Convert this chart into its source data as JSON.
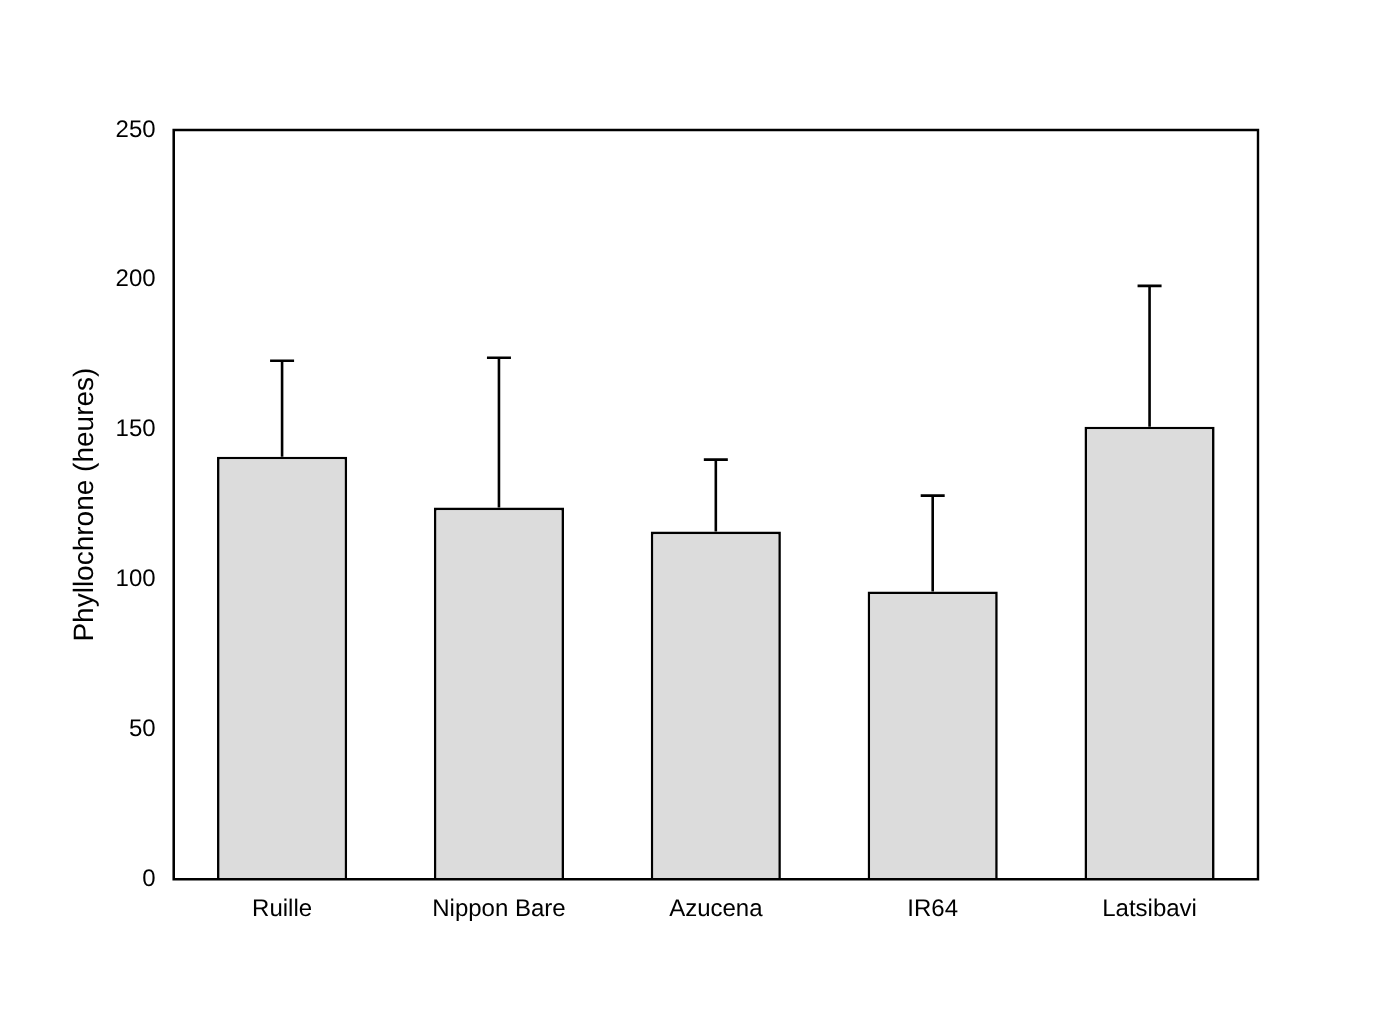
{
  "chart_data": {
    "type": "bar",
    "ylabel": "Phyllochrone (heures)",
    "categories": [
      "Ruille",
      "Nippon Bare",
      "Azucena",
      "IR64",
      "Latsibavi"
    ],
    "values": [
      141,
      124,
      116,
      96,
      151
    ],
    "errors": [
      [
        141,
        173
      ],
      [
        124,
        174
      ],
      [
        116,
        140
      ],
      [
        96,
        128
      ],
      [
        151,
        198
      ]
    ],
    "color": "#dcdcdc",
    "ylim": [
      0,
      250
    ],
    "yticks": [
      0,
      50,
      100,
      150,
      200,
      250
    ],
    "grid": false,
    "legend": false
  }
}
